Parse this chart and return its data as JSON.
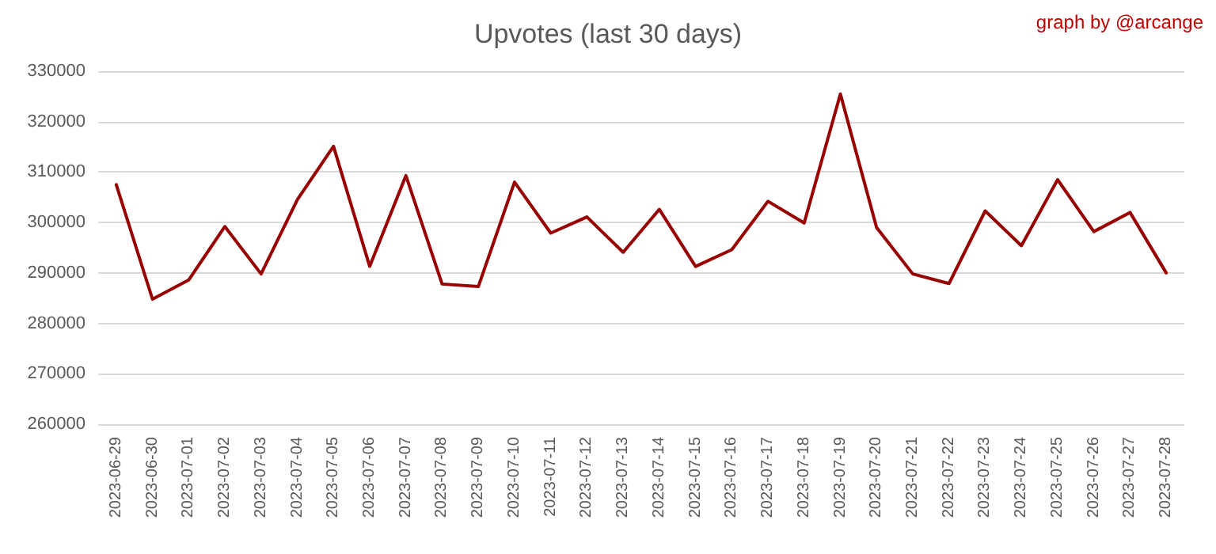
{
  "chart_data": {
    "type": "line",
    "title": "Upvotes (last 30 days)",
    "annotations": [
      "graph by @arcange"
    ],
    "categories": [
      "2023-06-29",
      "2023-06-30",
      "2023-07-01",
      "2023-07-02",
      "2023-07-03",
      "2023-07-04",
      "2023-07-05",
      "2023-07-06",
      "2023-07-07",
      "2023-07-08",
      "2023-07-09",
      "2023-07-10",
      "2023-07-11",
      "2023-07-12",
      "2023-07-13",
      "2023-07-14",
      "2023-07-15",
      "2023-07-16",
      "2023-07-17",
      "2023-07-18",
      "2023-07-19",
      "2023-07-20",
      "2023-07-21",
      "2023-07-22",
      "2023-07-23",
      "2023-07-24",
      "2023-07-25",
      "2023-07-26",
      "2023-07-27",
      "2023-07-28"
    ],
    "series": [
      {
        "color": "#990000",
        "values": [
          307500,
          284800,
          288600,
          299200,
          289800,
          304500,
          315100,
          291300,
          309300,
          287800,
          287300,
          308000,
          297900,
          301100,
          294100,
          302600,
          291300,
          294600,
          304200,
          299900,
          325500,
          299000,
          289800,
          287900,
          302300,
          295400,
          308500,
          298200,
          302000,
          290000
        ]
      }
    ],
    "ylim": [
      260000,
      330000
    ],
    "yticks": [
      260000,
      270000,
      280000,
      290000,
      300000,
      310000,
      320000,
      330000
    ],
    "grid": "y",
    "marker": "none",
    "line_style": "solid"
  }
}
